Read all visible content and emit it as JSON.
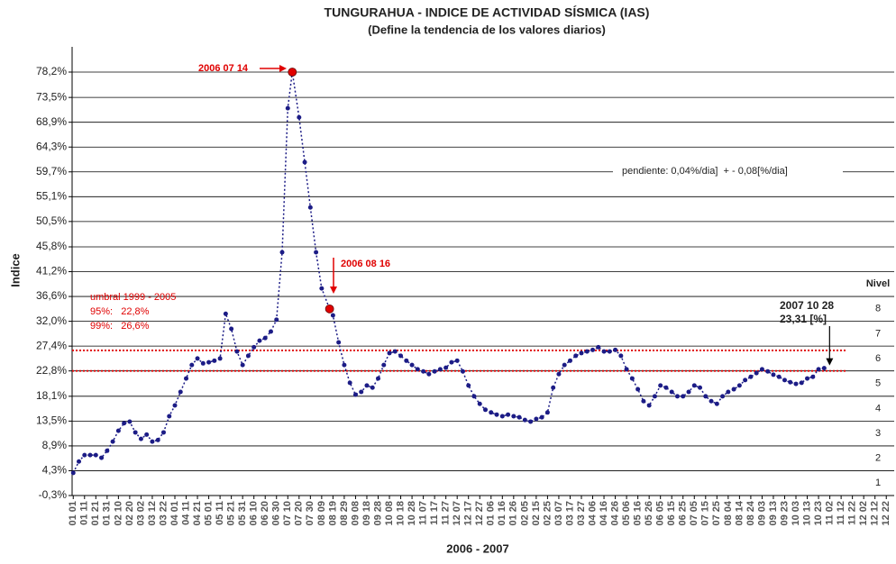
{
  "chart_data": {
    "type": "scatter",
    "title": "TUNGURAHUA - INDICE DE ACTIVIDAD SÍSMICA (IAS)",
    "subtitle": "(Define la tendencia de los valores diarios)",
    "ylabel": "Indice",
    "xlabel": "2006 - 2007",
    "color": "#1c1c86",
    "grid": true,
    "ylim": [
      -0.3,
      78.2
    ],
    "yticks": [
      {
        "value": -0.3,
        "label": "-0,3%"
      },
      {
        "value": 4.3,
        "label": "4,3%"
      },
      {
        "value": 8.9,
        "label": "8,9%"
      },
      {
        "value": 13.5,
        "label": "13,5%"
      },
      {
        "value": 18.1,
        "label": "18,1%"
      },
      {
        "value": 22.8,
        "label": "22,8%"
      },
      {
        "value": 27.4,
        "label": "27,4%"
      },
      {
        "value": 32.0,
        "label": "32,0%"
      },
      {
        "value": 36.6,
        "label": "36,6%"
      },
      {
        "value": 41.2,
        "label": "41,2%"
      },
      {
        "value": 45.8,
        "label": "45,8%"
      },
      {
        "value": 50.5,
        "label": "50,5%"
      },
      {
        "value": 55.1,
        "label": "55,1%"
      },
      {
        "value": 59.7,
        "label": "59,7%"
      },
      {
        "value": 64.3,
        "label": "64,3%"
      },
      {
        "value": 68.9,
        "label": "68,9%"
      },
      {
        "value": 73.5,
        "label": "73,5%"
      },
      {
        "value": 78.2,
        "label": "78,2%"
      }
    ],
    "xlim": [
      -1,
      727
    ],
    "xticks": [
      {
        "value": 0,
        "label": "01 01"
      },
      {
        "value": 10,
        "label": "01 11"
      },
      {
        "value": 20,
        "label": "01 21"
      },
      {
        "value": 30,
        "label": "01 31"
      },
      {
        "value": 40,
        "label": "02 10"
      },
      {
        "value": 50,
        "label": "02 20"
      },
      {
        "value": 60,
        "label": "03 02"
      },
      {
        "value": 70,
        "label": "03 12"
      },
      {
        "value": 80,
        "label": "03 22"
      },
      {
        "value": 90,
        "label": "04 01"
      },
      {
        "value": 100,
        "label": "04 11"
      },
      {
        "value": 110,
        "label": "04 21"
      },
      {
        "value": 120,
        "label": "05 01"
      },
      {
        "value": 130,
        "label": "05 11"
      },
      {
        "value": 140,
        "label": "05 21"
      },
      {
        "value": 150,
        "label": "05 31"
      },
      {
        "value": 160,
        "label": "06 10"
      },
      {
        "value": 170,
        "label": "06 20"
      },
      {
        "value": 180,
        "label": "06 30"
      },
      {
        "value": 190,
        "label": "07 10"
      },
      {
        "value": 200,
        "label": "07 20"
      },
      {
        "value": 210,
        "label": "07 30"
      },
      {
        "value": 220,
        "label": "08 09"
      },
      {
        "value": 230,
        "label": "08 19"
      },
      {
        "value": 240,
        "label": "08 29"
      },
      {
        "value": 250,
        "label": "09 08"
      },
      {
        "value": 260,
        "label": "09 18"
      },
      {
        "value": 270,
        "label": "09 28"
      },
      {
        "value": 280,
        "label": "10 08"
      },
      {
        "value": 290,
        "label": "10 18"
      },
      {
        "value": 300,
        "label": "10 28"
      },
      {
        "value": 310,
        "label": "11 07"
      },
      {
        "value": 320,
        "label": "11 17"
      },
      {
        "value": 330,
        "label": "11 27"
      },
      {
        "value": 340,
        "label": "12 07"
      },
      {
        "value": 350,
        "label": "12 17"
      },
      {
        "value": 360,
        "label": "12 27"
      },
      {
        "value": 370,
        "label": "01 06"
      },
      {
        "value": 380,
        "label": "01 16"
      },
      {
        "value": 390,
        "label": "01 26"
      },
      {
        "value": 400,
        "label": "02 05"
      },
      {
        "value": 410,
        "label": "02 15"
      },
      {
        "value": 420,
        "label": "02 25"
      },
      {
        "value": 430,
        "label": "03 07"
      },
      {
        "value": 440,
        "label": "03 17"
      },
      {
        "value": 450,
        "label": "03 27"
      },
      {
        "value": 460,
        "label": "04 06"
      },
      {
        "value": 470,
        "label": "04 16"
      },
      {
        "value": 480,
        "label": "04 26"
      },
      {
        "value": 490,
        "label": "05 06"
      },
      {
        "value": 500,
        "label": "05 16"
      },
      {
        "value": 510,
        "label": "05 26"
      },
      {
        "value": 520,
        "label": "06 05"
      },
      {
        "value": 530,
        "label": "06 15"
      },
      {
        "value": 540,
        "label": "06 25"
      },
      {
        "value": 550,
        "label": "07 05"
      },
      {
        "value": 560,
        "label": "07 15"
      },
      {
        "value": 570,
        "label": "07 25"
      },
      {
        "value": 580,
        "label": "08 04"
      },
      {
        "value": 590,
        "label": "08 14"
      },
      {
        "value": 600,
        "label": "08 24"
      },
      {
        "value": 610,
        "label": "09 03"
      },
      {
        "value": 620,
        "label": "09 13"
      },
      {
        "value": 630,
        "label": "09 23"
      },
      {
        "value": 640,
        "label": "10 03"
      },
      {
        "value": 650,
        "label": "10 13"
      },
      {
        "value": 660,
        "label": "10 23"
      },
      {
        "value": 670,
        "label": "11 02"
      },
      {
        "value": 680,
        "label": "11 12"
      },
      {
        "value": 690,
        "label": "11 22"
      },
      {
        "value": 700,
        "label": "12 02"
      },
      {
        "value": 710,
        "label": "12 12"
      },
      {
        "value": 720,
        "label": "12 22"
      }
    ],
    "x": [
      0,
      5,
      10,
      15,
      20,
      25,
      30,
      35,
      40,
      45,
      50,
      55,
      60,
      65,
      70,
      75,
      80,
      85,
      90,
      95,
      100,
      105,
      110,
      115,
      120,
      125,
      130,
      135,
      140,
      145,
      150,
      155,
      160,
      165,
      170,
      175,
      180,
      185,
      190,
      194,
      200,
      205,
      210,
      215,
      220,
      227,
      230,
      235,
      240,
      245,
      250,
      255,
      260,
      265,
      270,
      275,
      280,
      285,
      290,
      295,
      300,
      305,
      310,
      315,
      320,
      325,
      330,
      335,
      340,
      345,
      350,
      355,
      360,
      365,
      370,
      375,
      380,
      385,
      390,
      395,
      400,
      405,
      410,
      415,
      420,
      425,
      430,
      435,
      440,
      445,
      450,
      455,
      460,
      465,
      470,
      475,
      480,
      485,
      490,
      495,
      500,
      505,
      510,
      515,
      520,
      525,
      530,
      535,
      540,
      545,
      550,
      555,
      560,
      565,
      570,
      575,
      580,
      585,
      590,
      595,
      600,
      605,
      610,
      615,
      620,
      625,
      630,
      635,
      640,
      645,
      650,
      655,
      660,
      665
    ],
    "values": [
      3.9,
      6.0,
      7.2,
      7.2,
      7.2,
      6.7,
      8.0,
      9.7,
      11.7,
      13.1,
      13.4,
      11.4,
      10.2,
      11.0,
      9.7,
      10.0,
      11.4,
      14.4,
      16.4,
      18.9,
      21.4,
      23.9,
      25.1,
      24.2,
      24.4,
      24.7,
      25.1,
      33.4,
      30.6,
      26.4,
      23.9,
      25.6,
      27.2,
      28.4,
      28.9,
      30.1,
      32.3,
      44.8,
      71.5,
      78.2,
      69.8,
      61.5,
      53.1,
      44.8,
      38.1,
      34.3,
      33.1,
      28.1,
      23.9,
      20.6,
      18.4,
      18.9,
      20.1,
      19.7,
      21.4,
      23.9,
      26.1,
      26.4,
      25.6,
      24.7,
      23.9,
      23.1,
      22.7,
      22.2,
      22.7,
      23.1,
      23.4,
      24.4,
      24.7,
      22.7,
      20.1,
      18.1,
      16.7,
      15.6,
      15.1,
      14.7,
      14.4,
      14.7,
      14.4,
      14.2,
      13.7,
      13.4,
      13.9,
      14.2,
      15.1,
      19.7,
      22.2,
      23.9,
      24.7,
      25.6,
      26.1,
      26.4,
      26.7,
      27.2,
      26.4,
      26.4,
      26.7,
      25.6,
      23.1,
      21.4,
      19.4,
      17.2,
      16.4,
      18.1,
      20.1,
      19.7,
      18.9,
      18.1,
      18.1,
      18.9,
      20.1,
      19.7,
      18.1,
      17.2,
      16.7,
      18.1,
      18.9,
      19.4,
      20.1,
      21.1,
      21.7,
      22.4,
      23.1,
      22.7,
      22.1,
      21.7,
      21.1,
      20.7,
      20.4,
      20.6,
      21.4,
      21.7,
      23.1,
      23.31
    ],
    "annotations": [
      "2006 07 14",
      "2006 08 16"
    ],
    "end_annotation": {
      "date": "2007 10 28",
      "label": "23,31 [%]"
    },
    "slope_note": "pendiente: 0,04%/dia]  + - 0,08[%/dia]",
    "threshold_title": "umbral 1999 - 2005",
    "thresholds": [
      {
        "label": "95%:   22,8%",
        "value": 22.8
      },
      {
        "label": "99%:   26,6%",
        "value": 26.6
      }
    ],
    "threshold_color": "#e00000",
    "levels": {
      "title": "Nivel",
      "labels": [
        1,
        2,
        3,
        4,
        5,
        6,
        7,
        8
      ]
    }
  }
}
